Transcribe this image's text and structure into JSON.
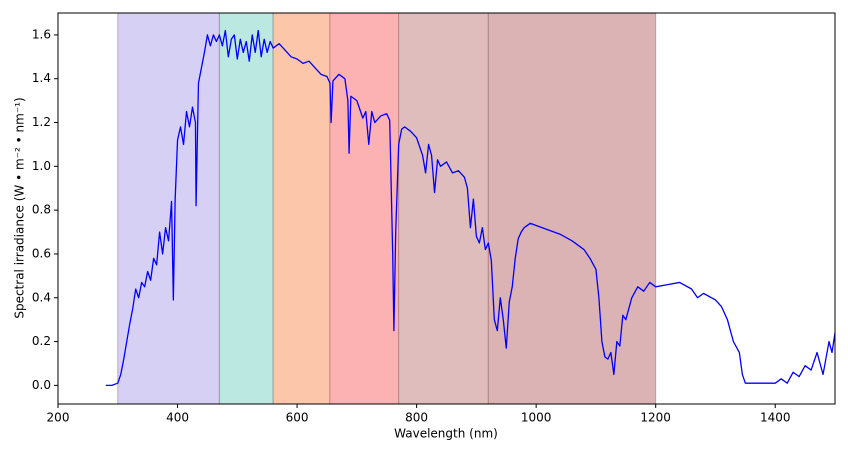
{
  "chart_data": {
    "type": "line",
    "xlabel": "Wavelength (nm)",
    "ylabel": "Spectral irradiance (W • m⁻² • nm⁻¹)",
    "xlim": [
      200,
      1500
    ],
    "ylim": [
      -0.085,
      1.7
    ],
    "xticks": [
      200,
      400,
      600,
      800,
      1000,
      1200,
      1400
    ],
    "yticks": [
      {
        "value": 0,
        "label": "0.0"
      },
      0.2,
      0.4,
      0.6,
      0.8,
      {
        "value": 1,
        "label": "1.0"
      },
      1.2,
      1.4,
      1.6
    ],
    "color": "#0000ff",
    "bands": [
      {
        "range": [
          300,
          470
        ],
        "color": "#d6d0f5"
      },
      {
        "range": [
          470,
          560
        ],
        "color": "#bbe8e1"
      },
      {
        "range": [
          560,
          655
        ],
        "color": "#fcc6aa"
      },
      {
        "range": [
          655,
          770
        ],
        "color": "#fcb2b2"
      },
      {
        "range": [
          770,
          920
        ],
        "color": "#dfbdbd"
      },
      {
        "range": [
          920,
          1200
        ],
        "color": "#dbb3b5"
      }
    ],
    "x": [
      280,
      290,
      300,
      305,
      310,
      315,
      320,
      325,
      330,
      335,
      340,
      345,
      350,
      355,
      360,
      365,
      370,
      375,
      380,
      385,
      390,
      393,
      396,
      400,
      405,
      410,
      415,
      420,
      425,
      430,
      431,
      435,
      440,
      445,
      450,
      455,
      460,
      465,
      470,
      475,
      480,
      485,
      490,
      495,
      500,
      505,
      510,
      515,
      520,
      525,
      530,
      535,
      540,
      545,
      550,
      555,
      560,
      570,
      580,
      590,
      600,
      610,
      620,
      630,
      640,
      650,
      655,
      657,
      660,
      670,
      680,
      685,
      687,
      690,
      700,
      710,
      715,
      720,
      725,
      730,
      740,
      750,
      755,
      760,
      762,
      765,
      770,
      775,
      780,
      790,
      800,
      810,
      815,
      820,
      825,
      830,
      835,
      840,
      850,
      860,
      870,
      880,
      885,
      890,
      895,
      900,
      905,
      910,
      915,
      920,
      925,
      930,
      935,
      940,
      945,
      950,
      955,
      960,
      965,
      970,
      975,
      980,
      990,
      1000,
      1020,
      1040,
      1060,
      1080,
      1090,
      1100,
      1105,
      1110,
      1115,
      1120,
      1125,
      1130,
      1135,
      1140,
      1145,
      1150,
      1160,
      1170,
      1180,
      1190,
      1200,
      1220,
      1240,
      1260,
      1270,
      1280,
      1300,
      1310,
      1320,
      1330,
      1340,
      1345,
      1350,
      1360,
      1380,
      1400,
      1410,
      1420,
      1430,
      1440,
      1450,
      1460,
      1470,
      1480,
      1490,
      1495,
      1500
    ],
    "values": [
      0,
      0,
      0.01,
      0.05,
      0.12,
      0.2,
      0.28,
      0.35,
      0.44,
      0.4,
      0.47,
      0.45,
      0.52,
      0.48,
      0.58,
      0.55,
      0.7,
      0.6,
      0.72,
      0.66,
      0.84,
      0.39,
      0.85,
      1.12,
      1.18,
      1.1,
      1.25,
      1.18,
      1.27,
      1.2,
      0.82,
      1.38,
      1.45,
      1.52,
      1.6,
      1.55,
      1.6,
      1.57,
      1.6,
      1.55,
      1.62,
      1.5,
      1.58,
      1.6,
      1.49,
      1.58,
      1.52,
      1.57,
      1.48,
      1.6,
      1.52,
      1.62,
      1.5,
      1.58,
      1.52,
      1.57,
      1.54,
      1.56,
      1.53,
      1.5,
      1.49,
      1.47,
      1.48,
      1.45,
      1.42,
      1.41,
      1.38,
      1.2,
      1.39,
      1.42,
      1.4,
      1.3,
      1.06,
      1.32,
      1.3,
      1.22,
      1.25,
      1.1,
      1.25,
      1.2,
      1.23,
      1.24,
      1.21,
      0.6,
      0.25,
      0.7,
      1.1,
      1.17,
      1.18,
      1.16,
      1.13,
      1.05,
      0.97,
      1.1,
      1.05,
      0.88,
      1.03,
      1,
      1.02,
      0.97,
      0.98,
      0.95,
      0.9,
      0.72,
      0.85,
      0.68,
      0.65,
      0.72,
      0.62,
      0.65,
      0.57,
      0.3,
      0.25,
      0.4,
      0.3,
      0.17,
      0.38,
      0.45,
      0.58,
      0.67,
      0.7,
      0.72,
      0.74,
      0.73,
      0.71,
      0.69,
      0.66,
      0.62,
      0.58,
      0.53,
      0.4,
      0.2,
      0.13,
      0.12,
      0.15,
      0.05,
      0.2,
      0.18,
      0.32,
      0.3,
      0.4,
      0.45,
      0.43,
      0.47,
      0.45,
      0.46,
      0.47,
      0.44,
      0.4,
      0.42,
      0.39,
      0.36,
      0.3,
      0.2,
      0.15,
      0.05,
      0.01,
      0.01,
      0.01,
      0.01,
      0.03,
      0.01,
      0.06,
      0.04,
      0.09,
      0.07,
      0.15,
      0.05,
      0.2,
      0.15,
      0.24
    ]
  }
}
